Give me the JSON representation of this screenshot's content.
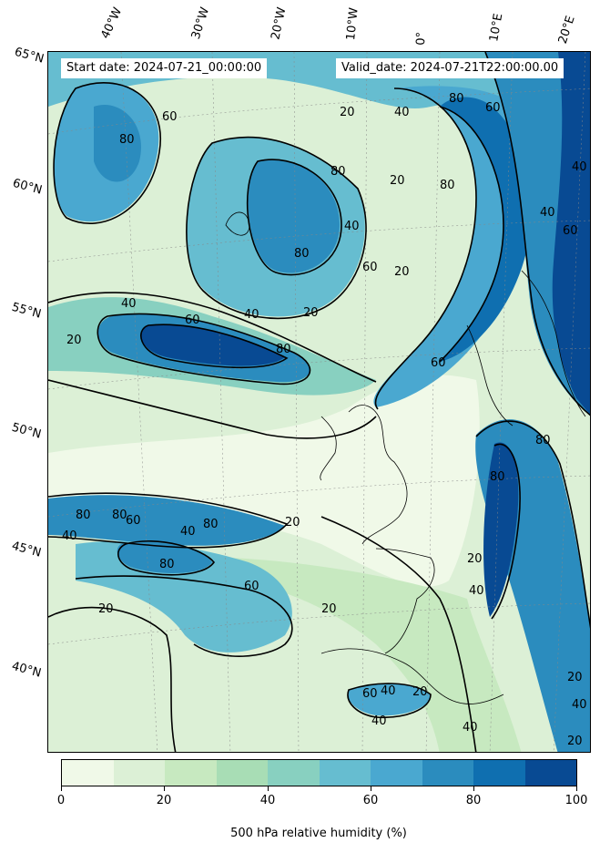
{
  "header": {
    "start_date": "Start date: 2024-07-21_00:00:00",
    "valid_date": "Valid_date: 2024-07-21T22:00:00.00"
  },
  "lon_labels": [
    "40°W",
    "30°W",
    "20°W",
    "10°W",
    "0°",
    "10°E",
    "20°E"
  ],
  "lat_labels": [
    "65°N",
    "60°N",
    "55°N",
    "50°N",
    "45°N",
    "40°N"
  ],
  "contour_labels": [
    "20",
    "40",
    "60",
    "80"
  ],
  "colorbar": {
    "label": "500 hPa relative humidity (%)",
    "ticks": [
      "0",
      "20",
      "40",
      "60",
      "80",
      "100"
    ],
    "colors": [
      "#f0f9e8",
      "#dcf0d6",
      "#c7e9c0",
      "#a8ddb5",
      "#88d0c0",
      "#66bdd0",
      "#4aa8d0",
      "#2b8cbe",
      "#0f6fb0",
      "#084a93"
    ]
  },
  "map": {
    "field": "500 hPa relative humidity",
    "units": "%",
    "contour_levels": [
      20,
      40,
      60,
      80
    ]
  }
}
